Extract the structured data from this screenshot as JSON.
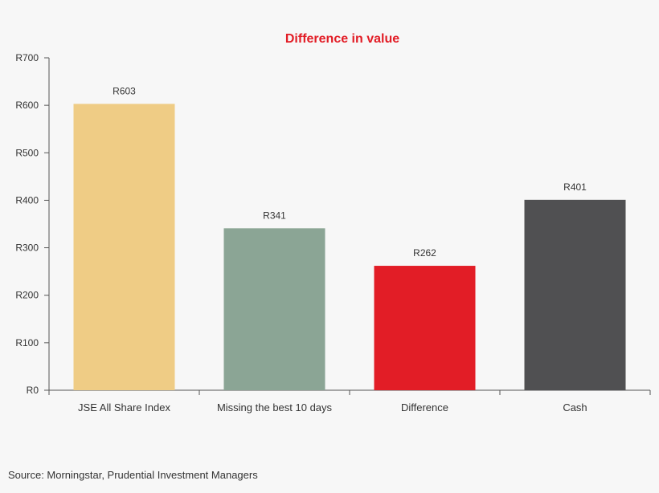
{
  "chart_data": {
    "type": "bar",
    "title": "Difference in value",
    "categories": [
      "JSE All Share Index",
      "Missing the best 10 days",
      "Difference",
      "Cash"
    ],
    "values": [
      603,
      341,
      262,
      401
    ],
    "data_labels": [
      "R603",
      "R341",
      "R262",
      "R401"
    ],
    "bar_colors": [
      "#efcc85",
      "#8ba595",
      "#e21d26",
      "#505052"
    ],
    "y_ticks": [
      0,
      100,
      200,
      300,
      400,
      500,
      600,
      700
    ],
    "y_tick_labels": [
      "R0",
      "R100",
      "R200",
      "R300",
      "R400",
      "R500",
      "R600",
      "R700"
    ],
    "ylim": [
      0,
      700
    ],
    "grid": false,
    "legend": "none",
    "title_color": "#e21d26"
  },
  "source": "Source: Morningstar, Prudential Investment Managers"
}
